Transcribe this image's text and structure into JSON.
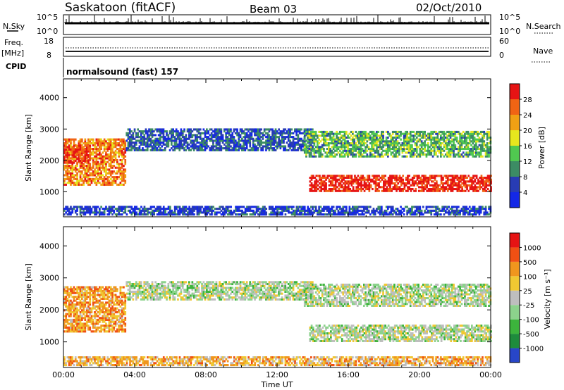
{
  "header": {
    "station": "Saskatoon (fitACF)",
    "beam": "Beam 03",
    "date": "02/Oct/2010"
  },
  "noise_panel": {
    "left_label": "N.Sky",
    "left_ticks": [
      "10^5",
      "10^0"
    ],
    "right_ticks": [
      "10^5",
      "10^0"
    ],
    "right_label": "N.Search"
  },
  "freq_panel": {
    "left_label_1": "Freq.",
    "left_label_2": "[MHz]",
    "left_ticks": [
      "18",
      "8"
    ],
    "right_ticks": [
      "60",
      "0"
    ],
    "right_label": "Nave"
  },
  "cpid_panel": {
    "label": "CPID",
    "program": "normalsound (fast) 157"
  },
  "chart_data": [
    {
      "type": "heatmap",
      "panel": "power",
      "ylabel": "Slant Range [km]",
      "yticks": [
        "1000",
        "2000",
        "3000",
        "4000"
      ],
      "ylim": [
        200,
        4600
      ],
      "xlim": [
        0,
        24
      ],
      "colorbar_label": "Power [dB]",
      "colorbar_ticks": [
        "4",
        "8",
        "12",
        "16",
        "20",
        "24",
        "28"
      ],
      "colorbar_colors": [
        "#1428e6",
        "#283cb4",
        "#3c8c64",
        "#50c850",
        "#e6e61e",
        "#f0a014",
        "#f06414",
        "#e61414"
      ],
      "echo_regions": [
        {
          "t0": 0.0,
          "t1": 3.5,
          "r0": 1200,
          "r1": 2700,
          "level": 0.75
        },
        {
          "t0": 0.0,
          "t1": 1.5,
          "r0": 1900,
          "r1": 2500,
          "level": 0.9
        },
        {
          "t0": 3.5,
          "t1": 14.0,
          "r0": 2300,
          "r1": 3000,
          "level": 0.2
        },
        {
          "t0": 13.8,
          "t1": 24.0,
          "r0": 1000,
          "r1": 1500,
          "level": 0.95
        },
        {
          "t0": 13.5,
          "t1": 24.0,
          "r0": 2100,
          "r1": 2900,
          "level": 0.4
        },
        {
          "t0": 0.0,
          "t1": 24.0,
          "r0": 250,
          "r1": 500,
          "level": 0.15
        }
      ]
    },
    {
      "type": "heatmap",
      "panel": "velocity",
      "ylabel": "Slant Range [km]",
      "yticks": [
        "1000",
        "2000",
        "3000",
        "4000"
      ],
      "ylim": [
        200,
        4600
      ],
      "xlim": [
        0,
        24
      ],
      "xticks": [
        "00:00",
        "04:00",
        "08:00",
        "12:00",
        "16:00",
        "20:00",
        "00:00"
      ],
      "xlabel": "Time UT",
      "colorbar_label": "Velocity [m s⁻¹]",
      "colorbar_ticks": [
        "1000",
        "500",
        "100",
        "25",
        "-25",
        "-100",
        "-500",
        "-1000"
      ],
      "colorbar_colors": [
        "#2846c8",
        "#1e8c3c",
        "#3cb43c",
        "#8cd28c",
        "#bebebe",
        "#f0c832",
        "#f0961e",
        "#f05014",
        "#e61414"
      ],
      "echo_regions": [
        {
          "t0": 0.0,
          "t1": 3.5,
          "r0": 1300,
          "r1": 2700,
          "level": 0.7
        },
        {
          "t0": 3.5,
          "t1": 14.0,
          "r0": 2300,
          "r1": 2900,
          "level": 0.45
        },
        {
          "t0": 13.8,
          "t1": 24.0,
          "r0": 1000,
          "r1": 1500,
          "level": 0.45
        },
        {
          "t0": 13.5,
          "t1": 24.0,
          "r0": 2100,
          "r1": 2800,
          "level": 0.45
        },
        {
          "t0": 0.0,
          "t1": 24.0,
          "r0": 250,
          "r1": 500,
          "level": 0.65
        }
      ]
    }
  ]
}
